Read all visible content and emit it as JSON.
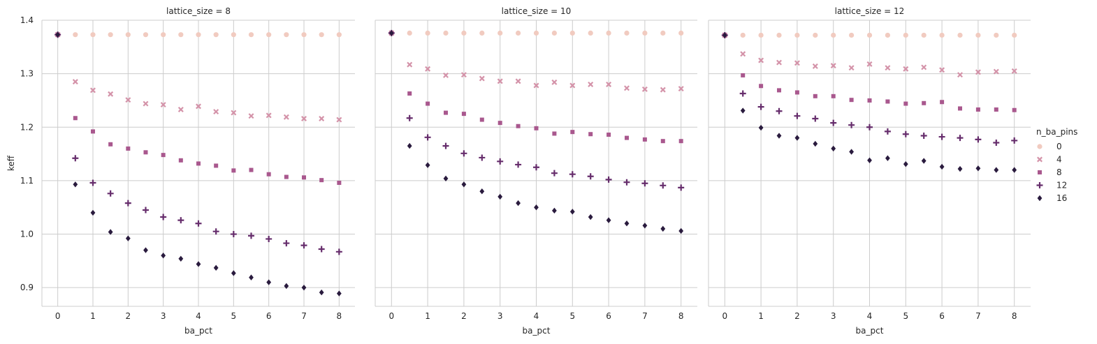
{
  "chart_data": {
    "type": "scatter",
    "xlabel": "ba_pct",
    "ylabel": "keff",
    "x_ticks": [
      "0",
      "1",
      "2",
      "3",
      "4",
      "5",
      "6",
      "7",
      "8"
    ],
    "y_ticks": [
      "0.9",
      "1.0",
      "1.1",
      "1.2",
      "1.3",
      "1.4"
    ],
    "xlim": [
      -0.45,
      8.45
    ],
    "ylim": [
      0.865,
      1.4
    ],
    "grid": true,
    "legend_title": "n_ba_pins",
    "legend_position": "right",
    "x": [
      0,
      0.5,
      1,
      1.5,
      2,
      2.5,
      3,
      3.5,
      4,
      4.5,
      5,
      5.5,
      6,
      6.5,
      7,
      7.5,
      8
    ],
    "series_style": [
      {
        "name": "0",
        "color": "#f1cbc0",
        "marker": "circle"
      },
      {
        "name": "4",
        "color": "#d493a9",
        "marker": "x"
      },
      {
        "name": "8",
        "color": "#a9588e",
        "marker": "square"
      },
      {
        "name": "12",
        "color": "#662d6c",
        "marker": "plus"
      },
      {
        "name": "16",
        "color": "#2a1b3e",
        "marker": "diamond"
      }
    ],
    "panels": [
      {
        "title": "lattice_size = 8",
        "series": [
          {
            "name": "0",
            "values": [
              1.373,
              1.373,
              1.373,
              1.373,
              1.373,
              1.373,
              1.373,
              1.373,
              1.373,
              1.373,
              1.373,
              1.373,
              1.373,
              1.373,
              1.373,
              1.373,
              1.373
            ]
          },
          {
            "name": "4",
            "values": [
              1.373,
              1.285,
              1.269,
              1.262,
              1.251,
              1.244,
              1.242,
              1.233,
              1.239,
              1.229,
              1.227,
              1.221,
              1.222,
              1.219,
              1.216,
              1.216,
              1.214
            ]
          },
          {
            "name": "8",
            "values": [
              1.373,
              1.217,
              1.192,
              1.168,
              1.16,
              1.153,
              1.148,
              1.138,
              1.132,
              1.128,
              1.119,
              1.12,
              1.112,
              1.107,
              1.106,
              1.101,
              1.096
            ]
          },
          {
            "name": "12",
            "values": [
              1.373,
              1.142,
              1.096,
              1.076,
              1.058,
              1.045,
              1.032,
              1.026,
              1.02,
              1.005,
              1.0,
              0.997,
              0.991,
              0.983,
              0.979,
              0.972,
              0.967
            ]
          },
          {
            "name": "16",
            "values": [
              1.373,
              1.093,
              1.04,
              1.004,
              0.992,
              0.97,
              0.96,
              0.954,
              0.944,
              0.937,
              0.927,
              0.919,
              0.91,
              0.903,
              0.9,
              0.891,
              0.889
            ]
          }
        ]
      },
      {
        "title": "lattice_size = 10",
        "series": [
          {
            "name": "0",
            "values": [
              1.376,
              1.376,
              1.376,
              1.376,
              1.376,
              1.376,
              1.376,
              1.376,
              1.376,
              1.376,
              1.376,
              1.376,
              1.376,
              1.376,
              1.376,
              1.376,
              1.376
            ]
          },
          {
            "name": "4",
            "values": [
              1.376,
              1.317,
              1.309,
              1.297,
              1.298,
              1.291,
              1.286,
              1.286,
              1.278,
              1.284,
              1.278,
              1.28,
              1.28,
              1.273,
              1.271,
              1.27,
              1.272
            ]
          },
          {
            "name": "8",
            "values": [
              1.376,
              1.263,
              1.244,
              1.227,
              1.225,
              1.214,
              1.208,
              1.202,
              1.198,
              1.188,
              1.191,
              1.187,
              1.186,
              1.18,
              1.177,
              1.174,
              1.174
            ]
          },
          {
            "name": "12",
            "values": [
              1.376,
              1.217,
              1.181,
              1.165,
              1.151,
              1.143,
              1.136,
              1.13,
              1.125,
              1.114,
              1.112,
              1.108,
              1.102,
              1.097,
              1.095,
              1.091,
              1.087
            ]
          },
          {
            "name": "16",
            "values": [
              1.376,
              1.165,
              1.129,
              1.104,
              1.093,
              1.08,
              1.07,
              1.058,
              1.05,
              1.044,
              1.042,
              1.032,
              1.026,
              1.02,
              1.016,
              1.01,
              1.006
            ]
          }
        ]
      },
      {
        "title": "lattice_size = 12",
        "series": [
          {
            "name": "0",
            "values": [
              1.372,
              1.372,
              1.372,
              1.372,
              1.372,
              1.372,
              1.372,
              1.372,
              1.372,
              1.372,
              1.372,
              1.372,
              1.372,
              1.372,
              1.372,
              1.372,
              1.372
            ]
          },
          {
            "name": "4",
            "values": [
              1.372,
              1.337,
              1.325,
              1.321,
              1.32,
              1.314,
              1.315,
              1.311,
              1.318,
              1.311,
              1.309,
              1.312,
              1.307,
              1.298,
              1.303,
              1.304,
              1.305
            ]
          },
          {
            "name": "8",
            "values": [
              1.372,
              1.297,
              1.277,
              1.269,
              1.265,
              1.258,
              1.258,
              1.251,
              1.25,
              1.248,
              1.244,
              1.245,
              1.247,
              1.235,
              1.233,
              1.233,
              1.232
            ]
          },
          {
            "name": "12",
            "values": [
              1.372,
              1.263,
              1.238,
              1.23,
              1.221,
              1.216,
              1.208,
              1.204,
              1.2,
              1.192,
              1.187,
              1.184,
              1.182,
              1.18,
              1.177,
              1.171,
              1.175
            ]
          },
          {
            "name": "16",
            "values": [
              1.372,
              1.231,
              1.199,
              1.184,
              1.18,
              1.169,
              1.16,
              1.154,
              1.138,
              1.142,
              1.131,
              1.137,
              1.126,
              1.122,
              1.123,
              1.12,
              1.12
            ]
          }
        ]
      }
    ]
  }
}
